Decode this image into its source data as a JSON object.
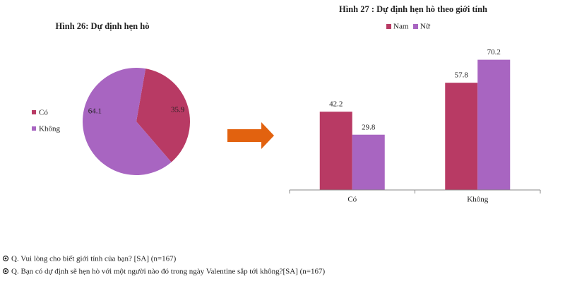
{
  "chart_data": [
    {
      "type": "pie",
      "title": "Hình 26: Dự định hẹn hò",
      "categories": [
        "Có",
        "Không"
      ],
      "values": [
        35.9,
        64.1
      ],
      "colors": [
        "#b83a64",
        "#a865c1"
      ]
    },
    {
      "type": "bar",
      "title": "Hình 27 : Dự định hẹn hò theo giới tính",
      "categories": [
        "Có",
        "Không"
      ],
      "series": [
        {
          "name": "Nam",
          "color": "#b83a64",
          "values": [
            42.2,
            57.8
          ]
        },
        {
          "name": "Nữ",
          "color": "#a865c1",
          "values": [
            29.8,
            70.2
          ]
        }
      ],
      "ylim": [
        0,
        75
      ]
    }
  ],
  "notes": [
    "Q. Vui lòng cho biết giới tính của bạn? [SA] (n=167)",
    "Q. Bạn có dự định sẽ hẹn hò với một người nào đó trong ngày Valentine sắp tới không?[SA] (n=167)"
  ]
}
